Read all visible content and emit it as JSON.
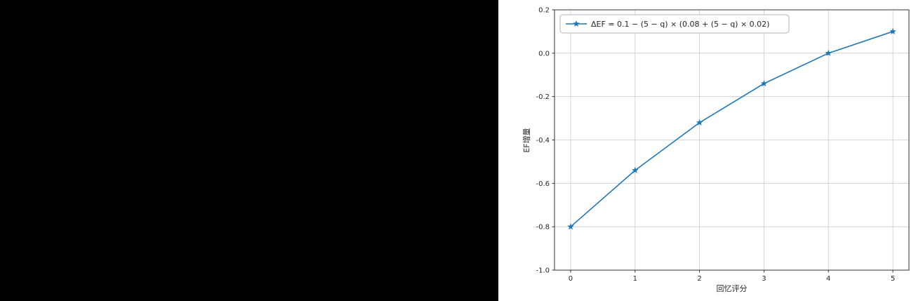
{
  "chart_data": {
    "type": "line",
    "x": [
      0,
      1,
      2,
      3,
      4,
      5
    ],
    "series": [
      {
        "name": "ΔEF = 0.1 − (5 − q) × (0.08 + (5 − q) × 0.02)",
        "values": [
          -0.8,
          -0.54,
          -0.32,
          -0.14,
          0.0,
          0.1
        ]
      }
    ],
    "title": "",
    "xlabel": "回忆评分",
    "ylabel": "EF增量",
    "xlim": [
      -0.25,
      5.25
    ],
    "ylim": [
      -1.0,
      0.2
    ],
    "xticks": {
      "values": [
        0,
        1,
        2,
        3,
        4,
        5
      ],
      "labels": [
        "0",
        "1",
        "2",
        "3",
        "4",
        "5"
      ]
    },
    "yticks": {
      "values": [
        -1.0,
        -0.8,
        -0.6,
        -0.4,
        -0.2,
        0.0,
        0.2
      ],
      "labels": [
        "-1.0",
        "-0.8",
        "-0.6",
        "-0.4",
        "-0.2",
        "0.0",
        "0.2"
      ]
    },
    "grid": true,
    "marker": "star",
    "legend": {
      "position": "upper left",
      "label": "ΔEF = 0.1 − (5 − q) × (0.08 + (5 − q) × 0.02)"
    },
    "colors": {
      "line": "#1f77b4",
      "grid": "#cccccc",
      "spine": "#333333",
      "text": "#262626",
      "background": "#ffffff",
      "legend_border": "#b3b3b3"
    }
  }
}
